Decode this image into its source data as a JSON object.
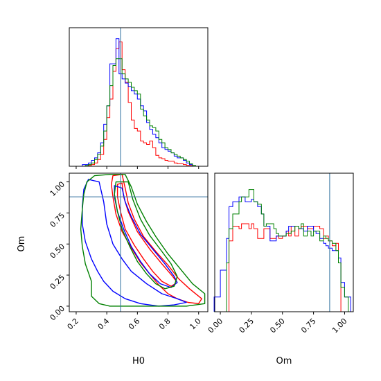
{
  "chart_data": {
    "type": "corner",
    "parameters": [
      "H0",
      "Om"
    ],
    "truths": {
      "H0": 0.49,
      "Om": 0.88
    },
    "colors": [
      "#ff0000",
      "#0000ff",
      "#008000"
    ],
    "ranges": {
      "H0": [
        0.155,
        1.06
      ],
      "Om": [
        -0.045,
        1.07
      ]
    },
    "ticks": {
      "H0": [
        "0.2",
        "0.4",
        "0.6",
        "0.8",
        "1.0"
      ],
      "Om": [
        "0.00",
        "0.25",
        "0.50",
        "0.75",
        "1.00"
      ]
    },
    "hist_H0": {
      "bins": [
        0.18,
        0.2,
        0.22,
        0.24,
        0.26,
        0.28,
        0.3,
        0.32,
        0.34,
        0.36,
        0.38,
        0.4,
        0.42,
        0.44,
        0.46,
        0.48,
        0.5,
        0.52,
        0.54,
        0.56,
        0.58,
        0.6,
        0.62,
        0.64,
        0.66,
        0.68,
        0.7,
        0.72,
        0.74,
        0.76,
        0.78,
        0.8,
        0.82,
        0.84,
        0.86,
        0.88,
        0.9,
        0.92,
        0.94,
        0.96,
        0.98,
        1.0,
        1.02,
        1.04
      ],
      "series": [
        {
          "color": "#ff0000",
          "values": [
            0,
            0,
            0,
            0,
            0,
            1,
            2,
            4,
            8,
            14,
            32,
            58,
            80,
            113,
            140,
            148,
            115,
            100,
            76,
            55,
            45,
            42,
            30,
            28,
            26,
            30,
            22,
            13,
            10,
            9,
            7,
            6,
            6,
            4,
            3,
            3,
            2,
            1,
            1,
            0,
            0,
            0,
            0
          ]
        },
        {
          "color": "#0000ff",
          "values": [
            0,
            0,
            0,
            2,
            2,
            4,
            7,
            10,
            16,
            28,
            50,
            72,
            122,
            122,
            152,
            110,
            104,
            99,
            95,
            90,
            86,
            80,
            72,
            66,
            52,
            44,
            38,
            34,
            28,
            22,
            20,
            18,
            16,
            12,
            10,
            10,
            7,
            4,
            2,
            0,
            0,
            0,
            0
          ]
        },
        {
          "color": "#008000",
          "values": [
            0,
            0,
            0,
            0,
            1,
            2,
            4,
            8,
            14,
            24,
            42,
            72,
            96,
            120,
            128,
            128,
            110,
            104,
            100,
            94,
            90,
            86,
            68,
            60,
            55,
            48,
            46,
            42,
            32,
            28,
            22,
            20,
            16,
            14,
            12,
            10,
            8,
            6,
            3,
            1,
            0,
            0,
            0
          ]
        }
      ]
    },
    "hist_Om": {
      "bins": [
        -0.05,
        -0.03,
        0.0,
        0.03,
        0.05,
        0.07,
        0.1,
        0.13,
        0.15,
        0.17,
        0.2,
        0.23,
        0.25,
        0.27,
        0.3,
        0.33,
        0.35,
        0.37,
        0.4,
        0.43,
        0.45,
        0.47,
        0.5,
        0.53,
        0.55,
        0.57,
        0.6,
        0.63,
        0.65,
        0.67,
        0.7,
        0.73,
        0.75,
        0.77,
        0.8,
        0.83,
        0.85,
        0.87,
        0.9,
        0.93,
        0.95,
        0.97,
        1.0,
        1.03,
        1.05,
        1.07
      ],
      "series": [
        {
          "color": "#ff0000",
          "values": [
            0,
            0,
            0,
            0,
            0,
            58,
            70,
            70,
            68,
            72,
            72,
            68,
            72,
            68,
            60,
            60,
            68,
            68,
            60,
            60,
            62,
            60,
            62,
            66,
            62,
            70,
            62,
            68,
            70,
            70,
            68,
            68,
            70,
            70,
            68,
            60,
            62,
            58,
            54,
            56,
            40,
            0,
            0,
            0,
            0
          ]
        },
        {
          "color": "#0000ff",
          "values": [
            12,
            12,
            34,
            34,
            60,
            86,
            90,
            90,
            94,
            94,
            90,
            90,
            92,
            90,
            86,
            80,
            70,
            70,
            58,
            58,
            62,
            62,
            62,
            66,
            70,
            70,
            70,
            68,
            68,
            66,
            70,
            70,
            66,
            64,
            60,
            56,
            54,
            52,
            50,
            50,
            44,
            24,
            12,
            12,
            0
          ]
        },
        {
          "color": "#008000",
          "values": [
            0,
            0,
            0,
            0,
            40,
            68,
            80,
            80,
            90,
            94,
            94,
            100,
            100,
            90,
            88,
            80,
            70,
            72,
            72,
            68,
            64,
            62,
            62,
            64,
            64,
            66,
            70,
            68,
            72,
            62,
            66,
            62,
            66,
            66,
            58,
            62,
            60,
            58,
            56,
            50,
            40,
            20,
            12,
            0,
            0
          ]
        }
      ]
    },
    "contours": [
      {
        "color": "#ff0000",
        "level": "outer",
        "points": [
          [
            0.44,
            1.05
          ],
          [
            0.5,
            1.06
          ],
          [
            0.52,
            0.95
          ],
          [
            0.54,
            0.83
          ],
          [
            0.58,
            0.7
          ],
          [
            0.64,
            0.56
          ],
          [
            0.72,
            0.44
          ],
          [
            0.8,
            0.33
          ],
          [
            0.87,
            0.22
          ],
          [
            0.94,
            0.14
          ],
          [
            1.02,
            0.06
          ],
          [
            1.0,
            0.02
          ],
          [
            0.93,
            0.03
          ],
          [
            0.86,
            0.06
          ],
          [
            0.8,
            0.1
          ],
          [
            0.74,
            0.17
          ],
          [
            0.68,
            0.26
          ],
          [
            0.62,
            0.35
          ],
          [
            0.56,
            0.47
          ],
          [
            0.5,
            0.6
          ],
          [
            0.46,
            0.74
          ],
          [
            0.44,
            0.88
          ],
          [
            0.43,
            0.98
          ],
          [
            0.44,
            1.05
          ]
        ]
      },
      {
        "color": "#ff0000",
        "level": "inner",
        "points": [
          [
            0.47,
            0.98
          ],
          [
            0.5,
            0.99
          ],
          [
            0.51,
            0.88
          ],
          [
            0.54,
            0.76
          ],
          [
            0.6,
            0.6
          ],
          [
            0.68,
            0.46
          ],
          [
            0.76,
            0.34
          ],
          [
            0.83,
            0.24
          ],
          [
            0.86,
            0.19
          ],
          [
            0.82,
            0.16
          ],
          [
            0.76,
            0.2
          ],
          [
            0.7,
            0.28
          ],
          [
            0.64,
            0.38
          ],
          [
            0.58,
            0.49
          ],
          [
            0.52,
            0.62
          ],
          [
            0.49,
            0.76
          ],
          [
            0.47,
            0.88
          ],
          [
            0.47,
            0.98
          ]
        ]
      },
      {
        "color": "#0000ff",
        "level": "outer",
        "points": [
          [
            0.28,
            1.02
          ],
          [
            0.35,
            1.0
          ],
          [
            0.38,
            0.84
          ],
          [
            0.4,
            0.66
          ],
          [
            0.44,
            0.5
          ],
          [
            0.5,
            0.38
          ],
          [
            0.56,
            0.28
          ],
          [
            0.66,
            0.18
          ],
          [
            0.76,
            0.1
          ],
          [
            0.86,
            0.06
          ],
          [
            0.92,
            0.03
          ],
          [
            0.84,
            0.01
          ],
          [
            0.74,
            0.0
          ],
          [
            0.62,
            0.02
          ],
          [
            0.52,
            0.06
          ],
          [
            0.44,
            0.12
          ],
          [
            0.38,
            0.2
          ],
          [
            0.34,
            0.28
          ],
          [
            0.3,
            0.38
          ],
          [
            0.26,
            0.52
          ],
          [
            0.24,
            0.66
          ],
          [
            0.24,
            0.8
          ],
          [
            0.25,
            0.94
          ],
          [
            0.28,
            1.02
          ]
        ]
      },
      {
        "color": "#0000ff",
        "level": "inner",
        "points": [
          [
            0.45,
            0.97
          ],
          [
            0.5,
            0.95
          ],
          [
            0.52,
            0.84
          ],
          [
            0.56,
            0.72
          ],
          [
            0.62,
            0.58
          ],
          [
            0.7,
            0.46
          ],
          [
            0.78,
            0.34
          ],
          [
            0.84,
            0.24
          ],
          [
            0.86,
            0.19
          ],
          [
            0.82,
            0.15
          ],
          [
            0.75,
            0.18
          ],
          [
            0.68,
            0.26
          ],
          [
            0.62,
            0.36
          ],
          [
            0.56,
            0.48
          ],
          [
            0.51,
            0.62
          ],
          [
            0.47,
            0.76
          ],
          [
            0.45,
            0.88
          ],
          [
            0.45,
            0.97
          ]
        ]
      },
      {
        "color": "#008000",
        "level": "outer",
        "points": [
          [
            0.42,
            1.06
          ],
          [
            0.52,
            1.06
          ],
          [
            0.56,
            0.96
          ],
          [
            0.6,
            0.82
          ],
          [
            0.66,
            0.68
          ],
          [
            0.72,
            0.56
          ],
          [
            0.8,
            0.42
          ],
          [
            0.88,
            0.3
          ],
          [
            0.96,
            0.18
          ],
          [
            1.04,
            0.1
          ],
          [
            1.04,
            0.02
          ],
          [
            0.92,
            0.0
          ],
          [
            0.78,
            0.0
          ],
          [
            0.64,
            0.0
          ],
          [
            0.52,
            0.0
          ],
          [
            0.42,
            0.0
          ],
          [
            0.35,
            0.02
          ],
          [
            0.3,
            0.08
          ],
          [
            0.3,
            0.2
          ],
          [
            0.26,
            0.34
          ],
          [
            0.24,
            0.48
          ],
          [
            0.23,
            0.62
          ],
          [
            0.24,
            0.78
          ],
          [
            0.25,
            0.9
          ],
          [
            0.27,
            1.0
          ],
          [
            0.32,
            1.05
          ],
          [
            0.42,
            1.06
          ]
        ]
      },
      {
        "color": "#008000",
        "level": "inner",
        "points": [
          [
            0.46,
            1.0
          ],
          [
            0.54,
            1.0
          ],
          [
            0.57,
            0.86
          ],
          [
            0.62,
            0.7
          ],
          [
            0.68,
            0.57
          ],
          [
            0.76,
            0.44
          ],
          [
            0.82,
            0.34
          ],
          [
            0.86,
            0.24
          ],
          [
            0.84,
            0.16
          ],
          [
            0.78,
            0.14
          ],
          [
            0.72,
            0.18
          ],
          [
            0.66,
            0.26
          ],
          [
            0.6,
            0.36
          ],
          [
            0.55,
            0.48
          ],
          [
            0.5,
            0.62
          ],
          [
            0.47,
            0.76
          ],
          [
            0.45,
            0.9
          ],
          [
            0.46,
            1.0
          ]
        ]
      }
    ]
  }
}
